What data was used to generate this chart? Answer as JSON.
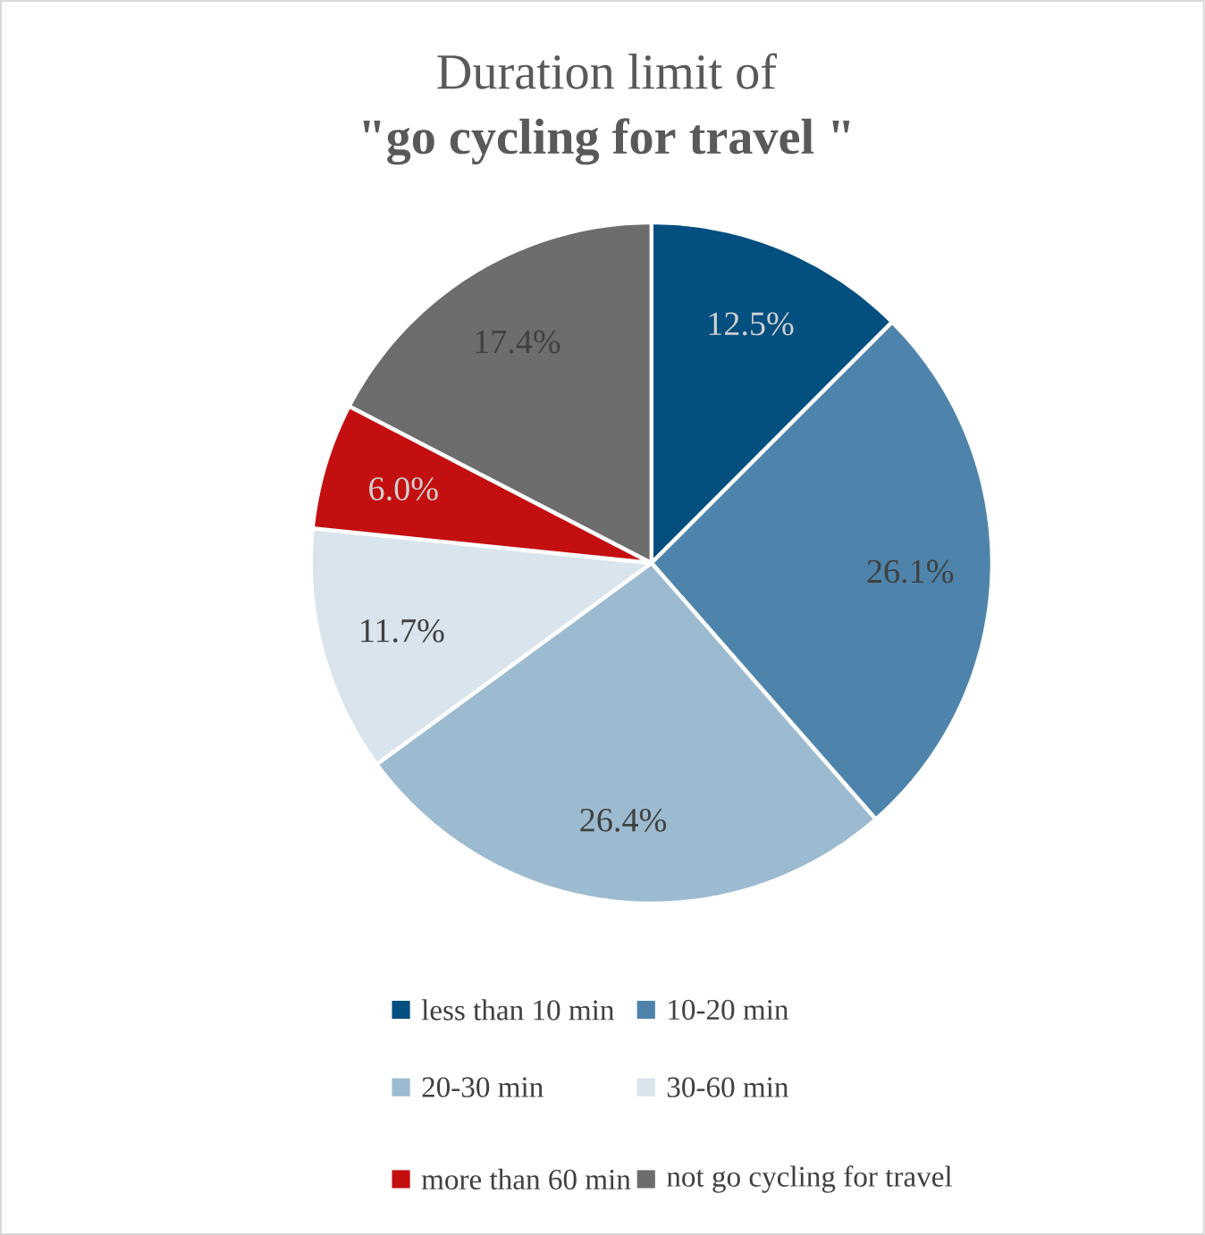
{
  "chart_data": {
    "type": "pie",
    "title": "Duration limit of",
    "subtitle": "\"go cycling for travel \"",
    "categories": [
      "less than 10 min",
      "10-20 min",
      "20-30 min",
      "30-60 min",
      "more than 60 min",
      "not go cycling for travel"
    ],
    "values": [
      12.5,
      26.1,
      26.4,
      11.7,
      6.0,
      17.4
    ],
    "colors": [
      "#034f7f",
      "#4e84ab",
      "#9cbbd0",
      "#d9e4ec",
      "#c40f10",
      "#6d6d6d"
    ],
    "value_labels": [
      "12.5%",
      "26.1%",
      "26.4%",
      "11.7%",
      "6.0%",
      "17.4%"
    ],
    "legend": "bottom"
  }
}
